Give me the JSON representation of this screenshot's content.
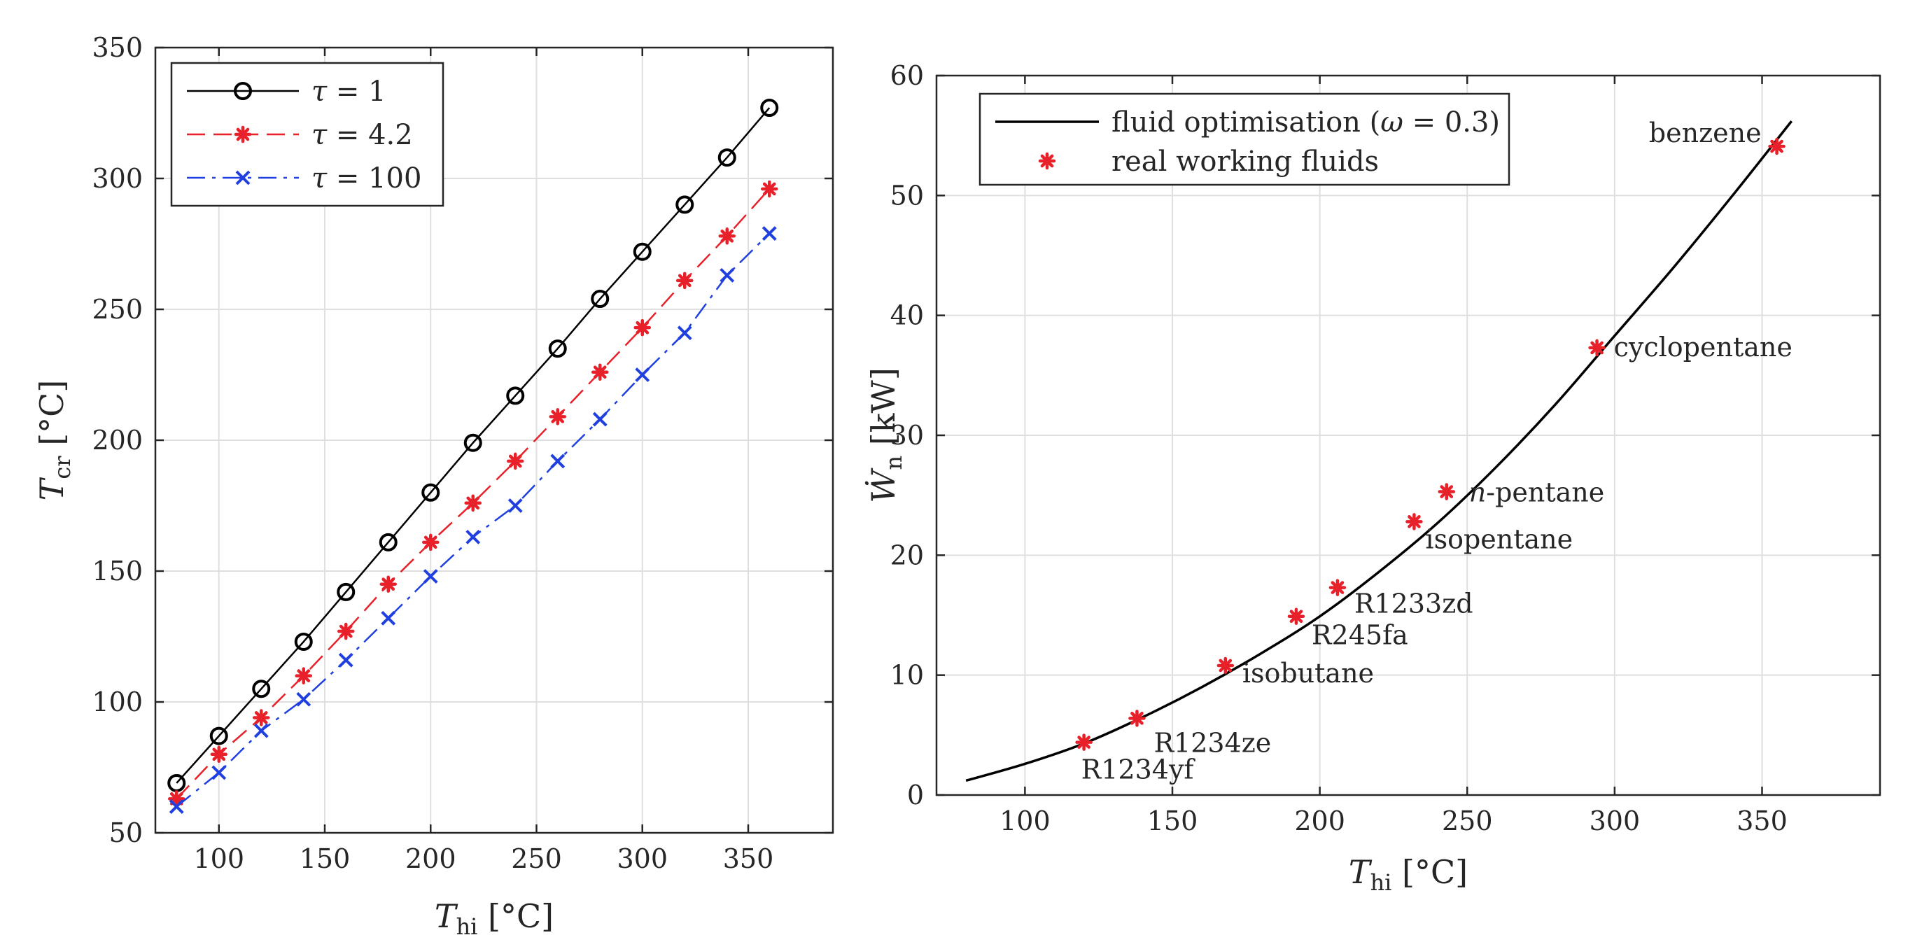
{
  "chart_data": [
    {
      "type": "line",
      "xlabel": "T_hi [°C]",
      "ylabel": "T_cr [°C]",
      "xlim": [
        70,
        390
      ],
      "ylim": [
        50,
        350
      ],
      "xticks": [
        100,
        150,
        200,
        250,
        300,
        350
      ],
      "yticks": [
        50,
        100,
        150,
        200,
        250,
        300,
        350
      ],
      "grid": true,
      "legend": "top-left",
      "series": [
        {
          "name": "τ = 1",
          "color": "#000000",
          "style": "solid",
          "marker": "circle",
          "x": [
            80,
            100,
            120,
            140,
            160,
            180,
            200,
            220,
            240,
            260,
            280,
            300,
            320,
            340,
            360
          ],
          "y": [
            69,
            87,
            105,
            123,
            142,
            161,
            180,
            199,
            217,
            235,
            254,
            272,
            290,
            308,
            327
          ]
        },
        {
          "name": "τ = 4.2",
          "color": "#e8202a",
          "style": "dashed",
          "marker": "asterisk",
          "x": [
            80,
            100,
            120,
            140,
            160,
            180,
            200,
            220,
            240,
            260,
            280,
            300,
            320,
            340,
            360
          ],
          "y": [
            63,
            80,
            94,
            110,
            127,
            145,
            161,
            176,
            192,
            209,
            226,
            243,
            261,
            278,
            296
          ]
        },
        {
          "name": "τ = 100",
          "color": "#1f3fe0",
          "style": "dashdot",
          "marker": "x",
          "x": [
            80,
            100,
            120,
            140,
            160,
            180,
            200,
            220,
            240,
            260,
            280,
            300,
            320,
            340,
            360
          ],
          "y": [
            60,
            73,
            89,
            101,
            116,
            132,
            148,
            163,
            175,
            192,
            208,
            225,
            241,
            263,
            279
          ]
        }
      ]
    },
    {
      "type": "line",
      "xlabel": "T_hi [°C]",
      "ylabel": "Ẇ_n [kW]",
      "xlim": [
        70,
        390
      ],
      "ylim": [
        0,
        60
      ],
      "xticks": [
        100,
        150,
        200,
        250,
        300,
        350
      ],
      "yticks": [
        0,
        10,
        20,
        30,
        40,
        50,
        60
      ],
      "grid": true,
      "legend": "top-left",
      "curve": {
        "name": "fluid optimisation (ω = 0.3)",
        "color": "#000000",
        "x": [
          80,
          100,
          120,
          140,
          160,
          180,
          200,
          220,
          240,
          260,
          280,
          300,
          320,
          340,
          360
        ],
        "y": [
          1.2,
          2.6,
          4.3,
          6.5,
          9.0,
          11.8,
          14.9,
          18.6,
          22.7,
          27.4,
          32.6,
          38.3,
          44.0,
          50.0,
          56.2
        ]
      },
      "points": {
        "name": "real working fluids",
        "color": "#e8202a",
        "items": [
          {
            "label": "R1234yf",
            "x": 120,
            "y": 4.4
          },
          {
            "label": "R1234ze",
            "x": 138,
            "y": 6.4
          },
          {
            "label": "isobutane",
            "x": 168,
            "y": 10.8
          },
          {
            "label": "R245fa",
            "x": 192,
            "y": 14.9
          },
          {
            "label": "R1233zd",
            "x": 206,
            "y": 17.3
          },
          {
            "label": "isopentane",
            "x": 232,
            "y": 22.8
          },
          {
            "label": "-pentane",
            "prefix": "n",
            "x": 243,
            "y": 25.3
          },
          {
            "label": "cyclopentane",
            "x": 294,
            "y": 37.3
          },
          {
            "label": "benzene",
            "x": 355,
            "y": 54.1
          }
        ]
      }
    }
  ]
}
